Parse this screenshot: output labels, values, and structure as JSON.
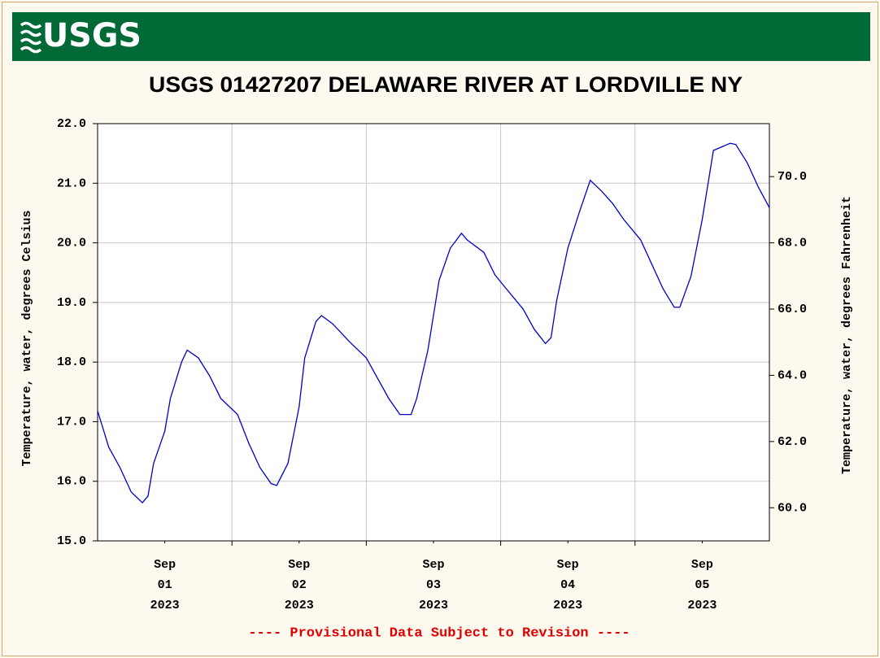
{
  "logo": "USGS",
  "footer": "---- Provisional Data Subject to Revision ----",
  "chart_data": {
    "type": "line",
    "title": "USGS 01427207 DELAWARE RIVER AT LORDVILLE NY",
    "ylabel": "Temperature, water, degrees Celsius",
    "y2label": "Temperature, water, degrees Fahrenheit",
    "grid": true,
    "xlim": [
      "2023-09-01 00:00",
      "2023-09-06 00:00"
    ],
    "xticks": [
      {
        "value": "2023-09-01 12:00",
        "label": "Sep 01 2023"
      },
      {
        "value": "2023-09-02 12:00",
        "label": "Sep 02 2023"
      },
      {
        "value": "2023-09-03 12:00",
        "label": "Sep 03 2023"
      },
      {
        "value": "2023-09-04 12:00",
        "label": "Sep 04 2023"
      },
      {
        "value": "2023-09-05 12:00",
        "label": "Sep 05 2023"
      }
    ],
    "xgrid": [
      "2023-09-02 00:00",
      "2023-09-03 00:00",
      "2023-09-04 00:00",
      "2023-09-05 00:00"
    ],
    "ylim": [
      15,
      22
    ],
    "yticks": [
      {
        "value": 15,
        "label": "15.0"
      },
      {
        "value": 16,
        "label": "16.0"
      },
      {
        "value": 17,
        "label": "17.0"
      },
      {
        "value": 18,
        "label": "18.0"
      },
      {
        "value": 19,
        "label": "19.0"
      },
      {
        "value": 20,
        "label": "20.0"
      },
      {
        "value": 21,
        "label": "21.0"
      },
      {
        "value": 22,
        "label": "22.0"
      }
    ],
    "y2lim": [
      59,
      71.6
    ],
    "y2ticks": [
      {
        "value": 60,
        "label": "60.0"
      },
      {
        "value": 62,
        "label": "62.0"
      },
      {
        "value": 64,
        "label": "64.0"
      },
      {
        "value": 66,
        "label": "66.0"
      },
      {
        "value": 68,
        "label": "68.0"
      },
      {
        "value": 70,
        "label": "70.0"
      }
    ],
    "x": [
      "2023-09-01 00:00",
      "2023-09-01 02:00",
      "2023-09-01 04:00",
      "2023-09-01 06:00",
      "2023-09-01 08:00",
      "2023-09-01 09:00",
      "2023-09-01 10:00",
      "2023-09-01 12:00",
      "2023-09-01 13:00",
      "2023-09-01 15:00",
      "2023-09-01 16:00",
      "2023-09-01 18:00",
      "2023-09-01 20:00",
      "2023-09-01 22:00",
      "2023-09-02 01:00",
      "2023-09-02 03:00",
      "2023-09-02 05:00",
      "2023-09-02 07:00",
      "2023-09-02 08:00",
      "2023-09-02 10:00",
      "2023-09-02 12:00",
      "2023-09-02 13:00",
      "2023-09-02 15:00",
      "2023-09-02 16:00",
      "2023-09-02 18:00",
      "2023-09-02 21:00",
      "2023-09-03 00:00",
      "2023-09-03 02:00",
      "2023-09-03 04:00",
      "2023-09-03 06:00",
      "2023-09-03 08:00",
      "2023-09-03 09:00",
      "2023-09-03 11:00",
      "2023-09-03 13:00",
      "2023-09-03 15:00",
      "2023-09-03 17:00",
      "2023-09-03 18:00",
      "2023-09-03 21:00",
      "2023-09-03 23:00",
      "2023-09-04 01:00",
      "2023-09-04 04:00",
      "2023-09-04 06:00",
      "2023-09-04 08:00",
      "2023-09-04 09:00",
      "2023-09-04 10:00",
      "2023-09-04 12:00",
      "2023-09-04 14:00",
      "2023-09-04 16:00",
      "2023-09-04 18:00",
      "2023-09-04 20:00",
      "2023-09-04 22:00",
      "2023-09-05 01:00",
      "2023-09-05 03:00",
      "2023-09-05 05:00",
      "2023-09-05 07:00",
      "2023-09-05 08:00",
      "2023-09-05 10:00",
      "2023-09-05 12:00",
      "2023-09-05 14:00",
      "2023-09-05 17:00",
      "2023-09-05 18:00",
      "2023-09-05 20:00",
      "2023-09-05 22:00",
      "2023-09-06 00:00"
    ],
    "series": [
      {
        "color": "#0000cc",
        "values": [
          17.18,
          16.57,
          16.23,
          15.82,
          15.64,
          15.75,
          16.3,
          16.84,
          17.39,
          18.0,
          18.2,
          18.07,
          17.77,
          17.39,
          17.12,
          16.64,
          16.23,
          15.96,
          15.93,
          16.3,
          17.25,
          18.07,
          18.68,
          18.78,
          18.64,
          18.34,
          18.07,
          17.73,
          17.39,
          17.12,
          17.12,
          17.39,
          18.2,
          19.37,
          19.91,
          20.16,
          20.05,
          19.84,
          19.46,
          19.23,
          18.89,
          18.55,
          18.31,
          18.41,
          19.03,
          19.91,
          20.5,
          21.05,
          20.87,
          20.66,
          20.39,
          20.05,
          19.64,
          19.23,
          18.92,
          18.92,
          19.44,
          20.39,
          21.55,
          21.67,
          21.65,
          21.35,
          20.94,
          20.59
        ]
      }
    ]
  }
}
